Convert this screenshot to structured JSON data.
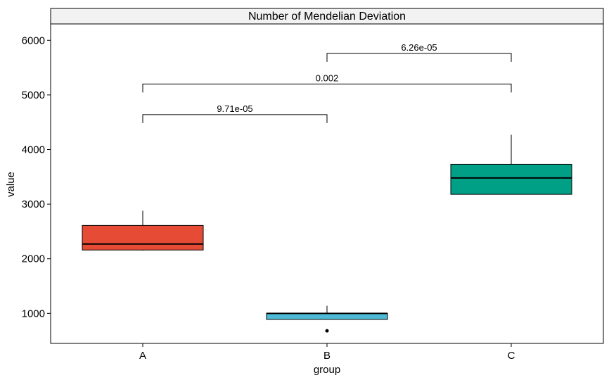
{
  "chart_data": {
    "type": "box",
    "title": "Number of Mendelian Deviation",
    "xlabel": "group",
    "ylabel": "value",
    "ylim": [
      450,
      6300
    ],
    "y_ticks": [
      1000,
      2000,
      3000,
      4000,
      5000,
      6000
    ],
    "categories": [
      "A",
      "B",
      "C"
    ],
    "boxes": [
      {
        "group": "A",
        "color": "#E64B35",
        "whisker_low": 2150,
        "q1": 2160,
        "median": 2270,
        "q3": 2610,
        "whisker_high": 2880,
        "outliers": []
      },
      {
        "group": "B",
        "color": "#4DBBD5",
        "whisker_low": 890,
        "q1": 890,
        "median": 1000,
        "q3": 1000,
        "whisker_high": 1140,
        "outliers": [
          680
        ]
      },
      {
        "group": "C",
        "color": "#00A087",
        "whisker_low": 3180,
        "q1": 3180,
        "median": 3480,
        "q3": 3730,
        "whisker_high": 4270,
        "outliers": []
      }
    ],
    "comparisons": [
      {
        "from": "A",
        "to": "B",
        "y": 4640,
        "label": "9.71e-05"
      },
      {
        "from": "A",
        "to": "C",
        "y": 5200,
        "label": "0.002"
      },
      {
        "from": "B",
        "to": "C",
        "y": 5760,
        "label": "6.26e-05"
      }
    ],
    "legend": "none",
    "grid": false
  }
}
